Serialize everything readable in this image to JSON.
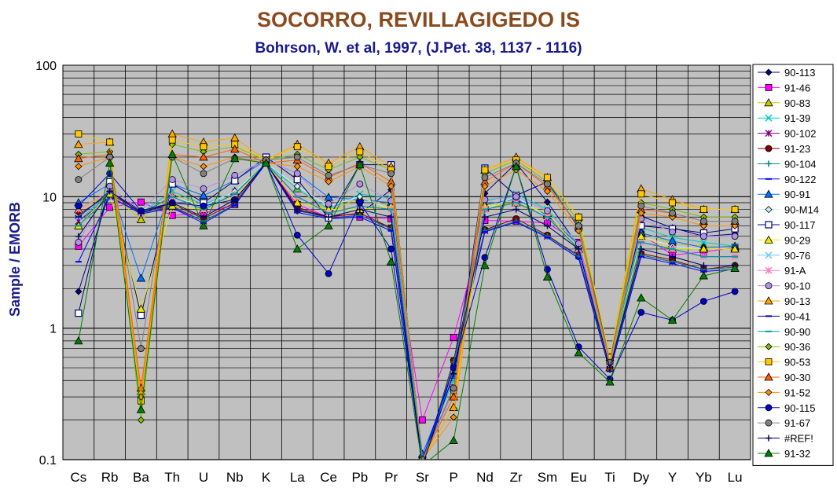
{
  "chart_data": {
    "type": "line",
    "title": "SOCORRO, REVILLAGIGEDO IS",
    "subtitle": "Bohrson, W. et al, 1997, (J.Pet. 38, 1137 - 1116)",
    "ylabel": "Sample / EMORB",
    "xlabel": "",
    "y_scale": "log",
    "ylim": [
      0.1,
      100
    ],
    "y_ticks": [
      "100",
      "10",
      "1",
      "0.1"
    ],
    "grid": true,
    "legend_position": "right",
    "categories": [
      "Cs",
      "Rb",
      "Ba",
      "Th",
      "U",
      "Nb",
      "K",
      "La",
      "Ce",
      "Pb",
      "Pr",
      "Sr",
      "P",
      "Nd",
      "Zr",
      "Sm",
      "Eu",
      "Ti",
      "Dy",
      "Y",
      "Yb",
      "Lu"
    ],
    "series": [
      {
        "name": "90-113",
        "color": "#000080",
        "marker": "diamond",
        "values": [
          1.9,
          11,
          7.8,
          8.5,
          6.5,
          8.7,
          18,
          7.8,
          7.1,
          7.4,
          11.3,
          0.09,
          0.55,
          10.6,
          18,
          9.1,
          4.2,
          0.5,
          7.1,
          5.8,
          5,
          5.2
        ]
      },
      {
        "name": "91-46",
        "color": "#ff00ff",
        "marker": "square",
        "values": [
          4.2,
          8.3,
          9.1,
          7.2,
          7.5,
          8.7,
          18,
          8.7,
          7,
          7,
          6.8,
          0.2,
          0.85,
          6.6,
          6.5,
          6.3,
          4.5,
          0.55,
          5.2,
          3.6,
          3.8,
          4.1
        ]
      },
      {
        "name": "90-83",
        "color": "#c8c800",
        "marker": "triangle",
        "values": [
          8,
          10.5,
          6.7,
          10.5,
          8.5,
          11,
          18,
          11.5,
          7.7,
          9.8,
          8.5,
          0.1,
          0.3,
          8.2,
          9,
          7.4,
          4,
          0.5,
          5.4,
          4.4,
          4.2,
          4.1
        ]
      },
      {
        "name": "91-39",
        "color": "#00c8c8",
        "marker": "x",
        "values": [
          6.5,
          11,
          7.5,
          11,
          8.7,
          11,
          18,
          11.5,
          8,
          10.5,
          9.7,
          0.11,
          0.4,
          9.2,
          10.5,
          8,
          4.3,
          0.53,
          5.8,
          4.9,
          4.5,
          4.2
        ]
      },
      {
        "name": "90-102",
        "color": "#800080",
        "marker": "star",
        "values": [
          6.5,
          10,
          7.6,
          8.3,
          6.5,
          8.7,
          18,
          7.9,
          6.9,
          7.2,
          5.8,
          0.09,
          0.55,
          5.5,
          6.5,
          5,
          3.6,
          0.5,
          3.6,
          3.2,
          2.8,
          2.9
        ]
      },
      {
        "name": "91-23",
        "color": "#800000",
        "marker": "circle",
        "values": [
          7.3,
          10.5,
          7.7,
          8.8,
          6.8,
          9,
          18,
          8.3,
          7,
          7.5,
          5.8,
          0.09,
          0.57,
          5.6,
          6.8,
          5.1,
          3.5,
          0.5,
          3.7,
          3.3,
          2.8,
          3
        ]
      },
      {
        "name": "90-104",
        "color": "#008080",
        "marker": "plus",
        "values": [
          6,
          10,
          7.5,
          8.5,
          6.5,
          8.7,
          18,
          8,
          6.8,
          7.2,
          5.7,
          0.09,
          0.55,
          5.5,
          6.5,
          5,
          3.5,
          0.48,
          3.6,
          3.2,
          2.8,
          2.9
        ]
      },
      {
        "name": "90-122",
        "color": "#0000ff",
        "marker": "dash",
        "values": [
          3.2,
          10,
          7.4,
          8.2,
          6.3,
          8.6,
          18,
          7.6,
          6.8,
          7,
          5.5,
          0.09,
          0.5,
          5.4,
          6.4,
          4.9,
          3.4,
          0.47,
          3.5,
          3.1,
          2.7,
          2.8
        ]
      },
      {
        "name": "90-91",
        "color": "#0070ff",
        "marker": "triangle",
        "values": [
          9,
          12.5,
          2.4,
          12.5,
          10.2,
          13.3,
          19,
          15,
          9.9,
          9.5,
          9,
          0.11,
          0.44,
          8.7,
          9.6,
          7.2,
          4.3,
          0.5,
          5.3,
          4.6,
          4.1,
          4.2
        ]
      },
      {
        "name": "90-M14",
        "color": "#c8f0ff",
        "marker": "diamond",
        "values": [
          6,
          11,
          7.5,
          10,
          8.5,
          11,
          18,
          12,
          8.5,
          10,
          8,
          0.1,
          0.35,
          8,
          10,
          7,
          4,
          0.5,
          5,
          4.2,
          4,
          4
        ]
      },
      {
        "name": "90-117",
        "color": "#000080",
        "marker": "square-open",
        "values": [
          1.3,
          13,
          1.25,
          12.5,
          9,
          13.2,
          20,
          13.5,
          6.9,
          17.5,
          17.5,
          0.1,
          0.35,
          16.5,
          10.2,
          13,
          5.8,
          0.6,
          6,
          5.7,
          5.3,
          5.7
        ]
      },
      {
        "name": "90-29",
        "color": "#e8e800",
        "marker": "triangle",
        "values": [
          6,
          10.5,
          1.4,
          8.5,
          8,
          10,
          18,
          9,
          8,
          8,
          8.5,
          0.1,
          0.25,
          8.5,
          9,
          7.5,
          4,
          0.5,
          5,
          4,
          4,
          4
        ]
      },
      {
        "name": "90-76",
        "color": "#70c8ff",
        "marker": "x",
        "values": [
          7,
          11,
          7.5,
          10,
          8,
          10.5,
          18,
          10,
          7.5,
          8.5,
          8,
          0.1,
          0.35,
          8,
          9,
          7,
          4,
          0.5,
          4.5,
          4,
          3.5,
          3.5
        ]
      },
      {
        "name": "91-A",
        "color": "#ff80c0",
        "marker": "star",
        "values": [
          8,
          11,
          7.5,
          10,
          8,
          10.5,
          18,
          10,
          7.5,
          8.5,
          8,
          0.1,
          0.35,
          8,
          9,
          7,
          4,
          0.5,
          4.5,
          4,
          3.5,
          3.5
        ]
      },
      {
        "name": "90-10",
        "color": "#b090e8",
        "marker": "circle",
        "values": [
          4.5,
          12,
          7.8,
          13.5,
          11.5,
          14.5,
          19,
          15,
          8.8,
          12.5,
          9.3,
          0.1,
          0.33,
          9.5,
          10,
          7.8,
          4.4,
          0.55,
          6.8,
          5.4,
          5,
          5
        ]
      },
      {
        "name": "90-13",
        "color": "#ffa500",
        "marker": "triangle",
        "values": [
          25,
          26,
          0.33,
          30,
          26,
          28,
          19,
          25,
          18,
          24,
          17,
          0.1,
          0.25,
          16,
          20,
          14,
          7,
          0.6,
          11.5,
          9.5,
          8,
          8
        ]
      },
      {
        "name": "90-41",
        "color": "#0000a0",
        "marker": "dash",
        "values": [
          7,
          11,
          7.5,
          10,
          8,
          10.5,
          18,
          10,
          7.5,
          8.5,
          8,
          0.1,
          0.35,
          8,
          9,
          7,
          4,
          0.5,
          4.5,
          4,
          3.5,
          3.5
        ]
      },
      {
        "name": "90-90",
        "color": "#00a0a0",
        "marker": "dash",
        "values": [
          6,
          11,
          7.5,
          10,
          8,
          10.5,
          18,
          10,
          7.5,
          8.5,
          8,
          0.1,
          0.35,
          8,
          9,
          7,
          4,
          0.5,
          4.5,
          4,
          3.5,
          3.5
        ]
      },
      {
        "name": "90-36",
        "color": "#80c000",
        "marker": "diamond",
        "values": [
          21,
          22,
          0.2,
          25,
          22,
          24,
          19,
          21,
          16,
          20,
          16,
          0.1,
          0.3,
          15,
          19,
          13,
          6.5,
          0.6,
          9,
          8,
          7,
          7
        ]
      },
      {
        "name": "90-53",
        "color": "#ffc800",
        "marker": "square",
        "values": [
          30,
          26,
          0.28,
          27,
          24,
          25,
          19,
          24,
          17,
          22,
          16,
          0.1,
          0.3,
          16,
          19,
          14,
          7,
          0.6,
          10.5,
          9,
          8,
          8
        ]
      },
      {
        "name": "90-30",
        "color": "#ff6000",
        "marker": "triangle",
        "values": [
          19.5,
          21,
          0.35,
          21,
          20,
          23,
          18,
          19,
          14,
          18,
          13,
          0.1,
          0.3,
          13,
          18,
          12,
          6,
          0.5,
          8,
          7.5,
          6.5,
          6.5
        ]
      },
      {
        "name": "91-52",
        "color": "#ff9000",
        "marker": "diamond",
        "values": [
          17,
          20,
          0.3,
          20,
          17,
          20,
          18,
          17,
          13,
          17,
          12,
          0.1,
          0.21,
          12,
          16,
          11,
          5.5,
          0.5,
          7.5,
          7,
          6,
          6
        ]
      },
      {
        "name": "90-115",
        "color": "#0000c8",
        "marker": "circle",
        "values": [
          8.5,
          15,
          7.8,
          9,
          8.5,
          9.5,
          18,
          5.1,
          2.6,
          9,
          4,
          0.1,
          0.5,
          3.45,
          17,
          2.8,
          0.72,
          0.41,
          1.32,
          1.15,
          1.6,
          1.9
        ]
      },
      {
        "name": "91-67",
        "color": "#808080",
        "marker": "circle",
        "values": [
          13.5,
          20,
          0.7,
          20,
          15,
          19.5,
          19,
          20,
          14.5,
          17.5,
          15,
          0.1,
          0.35,
          14,
          18,
          12.5,
          6,
          0.55,
          8.5,
          7.5,
          6.5,
          6.5
        ]
      },
      {
        "name": "#REF!",
        "color": "#000060",
        "marker": "plus",
        "values": [
          5,
          11,
          7.5,
          9,
          7,
          9.5,
          18,
          8,
          7,
          8,
          7,
          0.09,
          0.45,
          7,
          8,
          6,
          4,
          0.5,
          4,
          3.5,
          3,
          3
        ]
      },
      {
        "name": "91-32",
        "color": "#008000",
        "marker": "triangle",
        "values": [
          0.8,
          18,
          0.24,
          21,
          6,
          19.5,
          18,
          4,
          6,
          17.5,
          3.2,
          0.09,
          0.14,
          3,
          17,
          2.45,
          0.65,
          0.39,
          1.7,
          1.15,
          2.5,
          2.85
        ]
      }
    ]
  }
}
